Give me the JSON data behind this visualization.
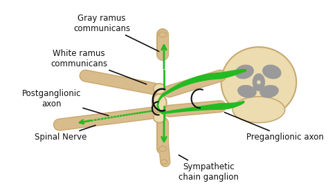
{
  "bg_color": "#ffffff",
  "tan": "#d9bc8c",
  "tan_edge": "#c8a870",
  "tan_light": "#ecdcb0",
  "green": "#22bb22",
  "gray_matter": "#9a9a9a",
  "gray_light": "#bbbbbb",
  "black": "#111111",
  "figsize": [
    4.74,
    2.75
  ],
  "dpi": 100,
  "labels": {
    "gray_ramus": "Gray ramus\ncommunicans",
    "white_ramus": "White ramus\ncommunicans",
    "postganglionic": "Postganglionic\naxon",
    "spinal_nerve": "Spinal Nerve",
    "preganglionic": "Preganglionic axon",
    "sympathetic": "Sympathetic\nchain ganglion"
  }
}
